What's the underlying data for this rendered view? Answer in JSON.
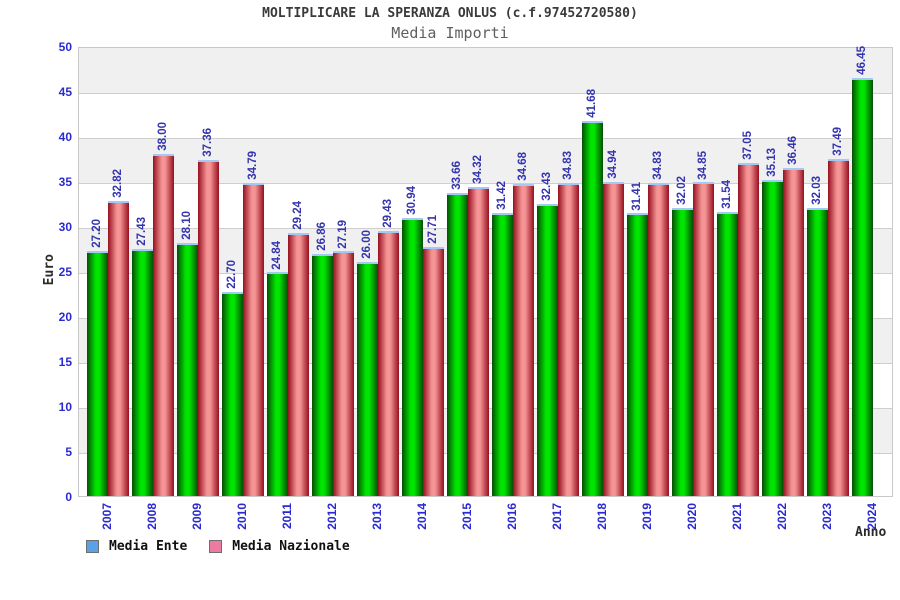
{
  "title": "MOLTIPLICARE LA SPERANZA ONLUS (c.f.97452720580)",
  "subtitle": "Media Importi",
  "y_axis": {
    "label": "Euro",
    "ticks": [
      0,
      5,
      10,
      15,
      20,
      25,
      30,
      35,
      40,
      45,
      50
    ]
  },
  "x_axis": {
    "label": "Anno"
  },
  "legend": [
    {
      "label": "Media Ente",
      "swatch_color": "#5aa2e8"
    },
    {
      "label": "Media Nazionale",
      "swatch_color": "#ec7ba4"
    }
  ],
  "chart_data": {
    "type": "bar",
    "title": "MOLTIPLICARE LA SPERANZA ONLUS (c.f.97452720580)",
    "subtitle": "Media Importi",
    "categories": [
      "2007",
      "2008",
      "2009",
      "2010",
      "2011",
      "2012",
      "2013",
      "2014",
      "2015",
      "2016",
      "2017",
      "2018",
      "2019",
      "2020",
      "2021",
      "2022",
      "2023",
      "2024"
    ],
    "series": [
      {
        "name": "Media Ente",
        "values": [
          27.2,
          27.43,
          28.1,
          22.7,
          24.84,
          26.86,
          26.0,
          30.94,
          33.66,
          31.42,
          32.43,
          41.68,
          31.41,
          32.02,
          31.54,
          35.13,
          32.03,
          46.45
        ],
        "bar_color_center": "#00e600",
        "bar_color_edge": "#064e06"
      },
      {
        "name": "Media Nazionale",
        "values": [
          32.82,
          38.0,
          37.36,
          34.79,
          29.24,
          27.19,
          29.43,
          27.71,
          34.32,
          34.68,
          34.83,
          34.94,
          34.83,
          34.85,
          37.05,
          36.46,
          37.49,
          null
        ],
        "bar_color_center": "#f49494",
        "bar_color_edge": "#970f20"
      }
    ],
    "ylabel": "Euro",
    "xlabel": "Anno",
    "ylim": [
      0,
      50
    ],
    "yticks": [
      0,
      5,
      10,
      15,
      20,
      25,
      30,
      35,
      40,
      45,
      50
    ],
    "grid": true,
    "value_labels": true,
    "value_label_format": "2-decimals",
    "legend_position": "bottom-left"
  }
}
